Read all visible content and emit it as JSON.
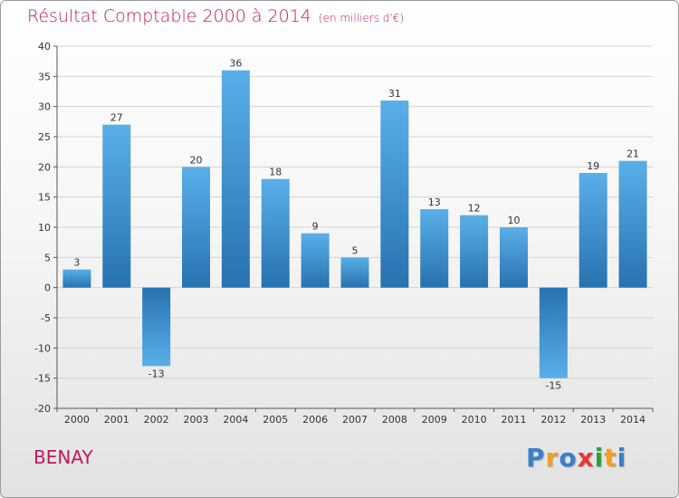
{
  "header": {
    "title": "Résultat Comptable 2000 à 2014",
    "subtitle": "(en milliers d'€)"
  },
  "footer": {
    "city": "BENAY",
    "brand": [
      "P",
      "r",
      "o",
      "x",
      "i",
      "t",
      "i"
    ],
    "brand_colors": [
      "#3a7fc9",
      "#f0a01e",
      "#3a7fc9",
      "#e53935",
      "#2e9e3c",
      "#f0a01e",
      "#3a7fc9"
    ]
  },
  "colors": {
    "bar_light": "#5aafe8",
    "bar_dark": "#2772b0",
    "title": "#c2185b"
  },
  "chart_data": {
    "type": "bar",
    "title": "Résultat Comptable 2000 à 2014",
    "xlabel": "",
    "ylabel": "",
    "categories": [
      "2000",
      "2001",
      "2002",
      "2003",
      "2004",
      "2005",
      "2006",
      "2007",
      "2008",
      "2009",
      "2010",
      "2011",
      "2012",
      "2013",
      "2014"
    ],
    "values": [
      3,
      27,
      -13,
      20,
      36,
      18,
      9,
      5,
      31,
      13,
      12,
      10,
      -15,
      19,
      21
    ],
    "data_labels": [
      "3",
      "27",
      "-13",
      "20",
      "36",
      "18",
      "9",
      "5",
      "31",
      "13",
      "12",
      "10",
      "-15",
      "19",
      "21"
    ],
    "ylim": [
      -20,
      40
    ],
    "yticks": [
      40,
      35,
      30,
      25,
      20,
      15,
      10,
      5,
      0,
      -5,
      -10,
      -15,
      -20
    ],
    "ytick_labels": [
      "40",
      "35",
      "30",
      "25",
      "20",
      "15",
      "10",
      "5",
      "0",
      "-5",
      "-10",
      "-15",
      "-20"
    ],
    "grid": true
  }
}
